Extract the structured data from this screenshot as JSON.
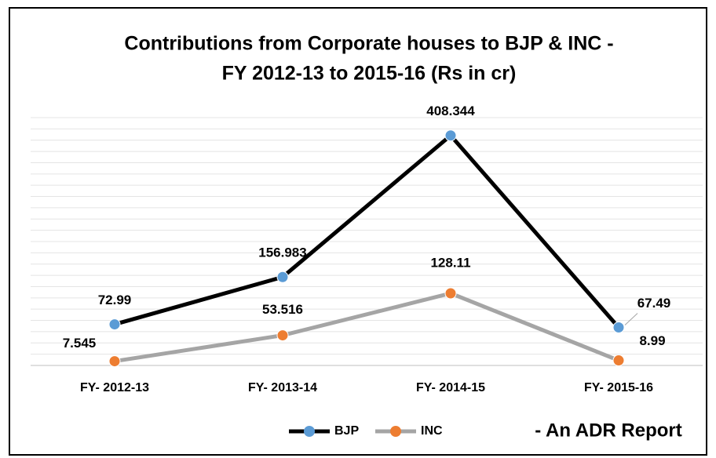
{
  "chart_data": {
    "type": "line",
    "title": [
      "Contributions from Corporate houses to BJP & INC -",
      "FY 2012-13 to 2015-16 (Rs in cr)"
    ],
    "categories": [
      "FY- 2012-13",
      "FY- 2013-14",
      "FY- 2014-15",
      "FY- 2015-16"
    ],
    "series": [
      {
        "name": "BJP",
        "color": "#000000",
        "marker_color": "#5b9bd5",
        "values": [
          72.99,
          156.983,
          408.344,
          67.49
        ]
      },
      {
        "name": "INC",
        "color": "#a5a5a5",
        "marker_color": "#ed7d31",
        "values": [
          7.545,
          53.516,
          128.11,
          8.99
        ]
      }
    ],
    "ylim": [
      0,
      440
    ],
    "yticks": [
      0,
      20,
      40,
      60,
      80,
      100,
      120,
      140,
      160,
      180,
      200,
      220,
      240,
      260,
      280,
      300,
      320,
      340,
      360,
      380,
      400,
      420,
      440
    ],
    "grid": true,
    "legend": "bottom",
    "annotation": "- An ADR Report"
  }
}
